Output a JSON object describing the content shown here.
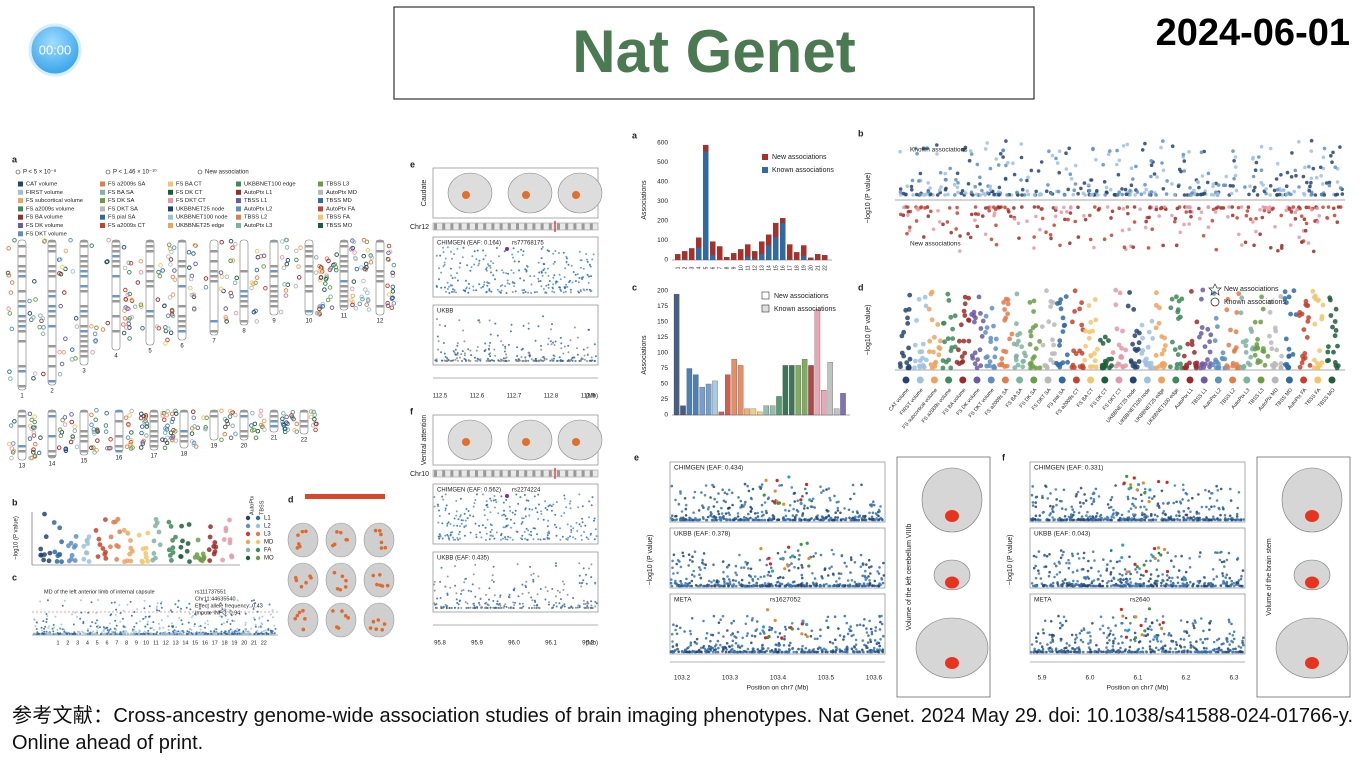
{
  "timer": "00:00",
  "title": "Nat Genet",
  "date": "2024-06-01",
  "caption": "参考文献：Cross-ancestry genome-wide association studies of brain imaging phenotypes. Nat Genet. 2024 May 29. doi: 10.1038/s41588-024-01766-y. Online ahead of print.",
  "left_figure": {
    "panels": [
      "a",
      "b",
      "c",
      "d"
    ],
    "legend_symbols": [
      "P < 5 × 10⁻⁸",
      "P < 1.46 × 10⁻¹⁰",
      "New association"
    ],
    "legend": [
      "CAT volume",
      "FIRST volume",
      "FS subcortical volume",
      "FS a2009s volume",
      "FS BA volume",
      "FS DK volume",
      "FS DKT volume",
      "FS a2009s SA",
      "FS BA SA",
      "FS DK SA",
      "FS DKT SA",
      "FS pial SA",
      "FS a2009s CT",
      "FS BA CT",
      "FS DK CT",
      "FS DKT CT",
      "UKBBNET25 node",
      "UKBBNET100 node",
      "UKBBNET25 edge",
      "UKBBNET100 edge",
      "AutoPtx L1",
      "TBSS L1",
      "AutoPtx L2",
      "TBSS L2",
      "AutoPtx L3",
      "TBSS L3",
      "AutoPtx MD",
      "TBSS MD",
      "AutoPtx FA",
      "TBSS FA",
      "TBSS MO"
    ],
    "chromosomes": [
      "1",
      "2",
      "3",
      "4",
      "5",
      "6",
      "7",
      "8",
      "9",
      "10",
      "11",
      "12",
      "13",
      "14",
      "15",
      "16",
      "17",
      "18",
      "19",
      "20",
      "21",
      "22"
    ],
    "y_label": "−log10 (P value)",
    "panel_b_groups": [
      "AutoPtx",
      "TBSS"
    ],
    "panel_b_legend": [
      "L1",
      "L2",
      "L3",
      "MD",
      "FA",
      "MO"
    ],
    "panel_c_title": "MD of the left anterior limb of internal capsule",
    "panel_c_info": [
      "rs111737551",
      "Chr11:44635540",
      "Effect allele frequency: 0.43",
      "Impute INFO: 0.94"
    ]
  },
  "middle_figure": {
    "e": {
      "label": "e",
      "region": "Caudate",
      "chr": "Chr12",
      "tracks": [
        "CHIMGEN (EAF: 0.164)",
        "UKBB"
      ],
      "snp": "rs77768175",
      "xticks": [
        "112.5",
        "112.6",
        "112.7",
        "112.8",
        "112.9"
      ],
      "unit": "(Mb)"
    },
    "f": {
      "label": "f",
      "region": "Ventral attention",
      "chr": "Chr10",
      "tracks": [
        "CHIMGEN (EAF: 0.562)",
        "UKBB (EAF: 0.435)"
      ],
      "snp": "rs2274224",
      "xticks": [
        "95.8",
        "95.9",
        "96.0",
        "96.1",
        "96.2"
      ],
      "unit": "(Mb)"
    }
  },
  "right_figure": {
    "a": {
      "label": "a",
      "y_label": "Associations",
      "legend": [
        "New associations",
        "Known associations"
      ],
      "yticks": [
        "0",
        "100",
        "200",
        "300",
        "400",
        "500",
        "600"
      ]
    },
    "b": {
      "label": "b",
      "top": "Known associations",
      "bottom": "New associations"
    },
    "c": {
      "label": "c",
      "y_label": "Associations",
      "legend": [
        "New associations",
        "Known associations"
      ],
      "yticks": [
        "0",
        "25",
        "50",
        "75",
        "100",
        "125",
        "150",
        "175",
        "200"
      ]
    },
    "d": {
      "label": "d",
      "legend": [
        "New associations",
        "Known associations"
      ]
    },
    "e": {
      "label": "e",
      "tracks": [
        "CHIMGEN (EAF: 0.434)",
        "UKBB (EAF: 0.378)",
        "META"
      ],
      "snp": "rs1627052",
      "xticks": [
        "103.2",
        "103.3",
        "103.4",
        "103.5",
        "103.6"
      ],
      "x_label": "Position on chr7 (Mb)",
      "phenotype": "Volume of the left cerebellum VIIIb"
    },
    "f": {
      "label": "f",
      "tracks": [
        "CHIMGEN (EAF: 0.331)",
        "UKBB (EAF: 0.043)",
        "META"
      ],
      "snp": "rs2640",
      "xticks": [
        "5.9",
        "6.0",
        "6.1",
        "6.2",
        "6.3"
      ],
      "x_label": "Position on chr7 (Mb)",
      "phenotype": "Volume of the brain stem"
    }
  }
}
